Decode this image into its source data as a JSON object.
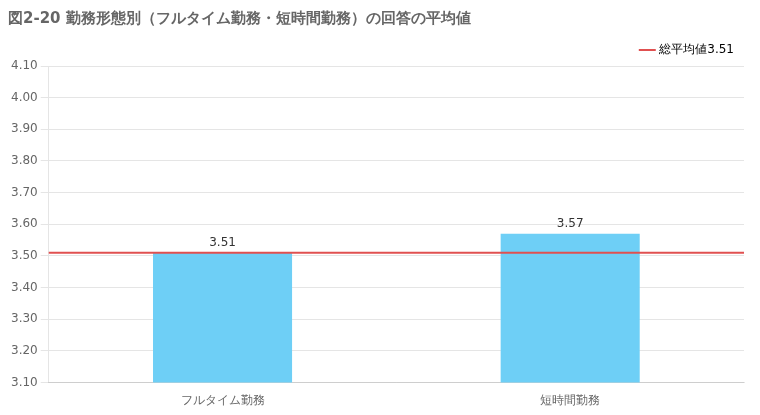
{
  "chart_data": {
    "type": "bar",
    "title": "図2-20 勤務形態別（フルタイム勤務・短時間勤務）の回答の平均値",
    "categories": [
      "フルタイム勤務",
      "短時間勤務"
    ],
    "values": [
      3.51,
      3.57
    ],
    "color": "#6ECFF6",
    "data_labels": true,
    "reference_line": {
      "value": 3.51,
      "label": "総平均値3.51",
      "color": "#E05050"
    },
    "legend": "upper right",
    "ylim": [
      3.1,
      4.1
    ],
    "yticks": [
      {
        "value": 3.1,
        "label": "3.10"
      },
      {
        "value": 3.2,
        "label": "3.20"
      },
      {
        "value": 3.3,
        "label": "3.30"
      },
      {
        "value": 3.4,
        "label": "3.40"
      },
      {
        "value": 3.5,
        "label": "3.50"
      },
      {
        "value": 3.6,
        "label": "3.60"
      },
      {
        "value": 3.7,
        "label": "3.70"
      },
      {
        "value": 3.8,
        "label": "3.80"
      },
      {
        "value": 3.9,
        "label": "3.90"
      },
      {
        "value": 4.0,
        "label": "4.00"
      },
      {
        "value": 4.1,
        "label": "4.10"
      }
    ],
    "grid": true
  }
}
